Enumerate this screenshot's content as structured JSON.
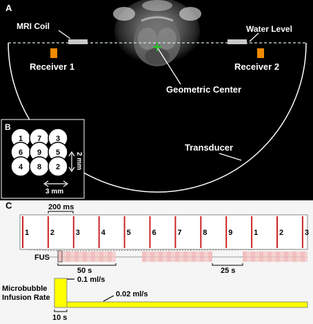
{
  "panelA": {
    "letter": "A",
    "labels": {
      "mri_coil": "MRI Coil",
      "water_level": "Water Level",
      "receiver1": "Receiver 1",
      "receiver2": "Receiver 2",
      "geometric_center": "Geometric Center",
      "transducer": "Transducer"
    },
    "colors": {
      "receiver": "#f08a00",
      "center_marker": "#22cc22"
    }
  },
  "panelB": {
    "letter": "B",
    "elements": [
      "1",
      "7",
      "3",
      "6",
      "9",
      "5",
      "4",
      "8",
      "2"
    ],
    "dim_vertical": "2 mm",
    "dim_horizontal": "3 mm"
  },
  "panelC": {
    "letter": "C",
    "pulse_interval": "200 ms",
    "pulse_sequence": [
      "1",
      "2",
      "3",
      "4",
      "5",
      "6",
      "7",
      "8",
      "9",
      "1",
      "2",
      "3"
    ],
    "fus_label": "FUS",
    "on_duration": "50 s",
    "off_duration": "25 s",
    "infusion_label_line1": "Microbubble",
    "infusion_label_line2": "Infusion Rate",
    "bolus_rate": "0.1 ml/s",
    "steady_rate": "0.02 ml/s",
    "bolus_duration": "10 s",
    "colors": {
      "pulse": "#cc2222",
      "fus_block": "#f4c4c4",
      "infusion": "#ffff00"
    }
  }
}
